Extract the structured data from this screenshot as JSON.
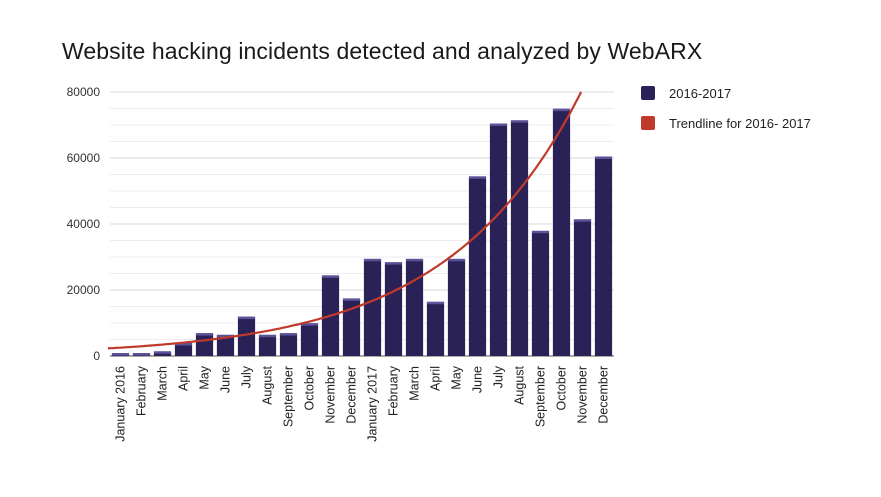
{
  "colors": {
    "bar": "#2a2256",
    "bar_top": "#5b5399",
    "trend": "#c0392b",
    "grid": "#d9d9d9",
    "axis": "#555555"
  },
  "chart_data": {
    "type": "bar",
    "title": "Website hacking incidents detected and analyzed by WebARX",
    "categories": [
      "January 2016",
      "February",
      "March",
      "April",
      "May",
      "June",
      "July",
      "August",
      "September",
      "October",
      "November",
      "December",
      "January 2017",
      "February",
      "March",
      "April",
      "May",
      "June",
      "July",
      "August",
      "September",
      "October",
      "November",
      "December"
    ],
    "series": [
      {
        "name": "2016-2017",
        "values": [
          0,
          0,
          1000,
          3500,
          6500,
          6000,
          11500,
          6000,
          6500,
          9500,
          24000,
          17000,
          29000,
          28000,
          29000,
          16000,
          29000,
          54000,
          70000,
          71000,
          37500,
          74500,
          41000,
          60000
        ]
      },
      {
        "name": "Trendline for 2016- 2017",
        "type": "trendline",
        "model": "exponential"
      }
    ],
    "ylim": [
      0,
      80000
    ],
    "yticks": [
      "0",
      "20000",
      "40000",
      "60000",
      "80000"
    ],
    "grid": true,
    "legend": "right",
    "xlabel": "",
    "ylabel": ""
  }
}
